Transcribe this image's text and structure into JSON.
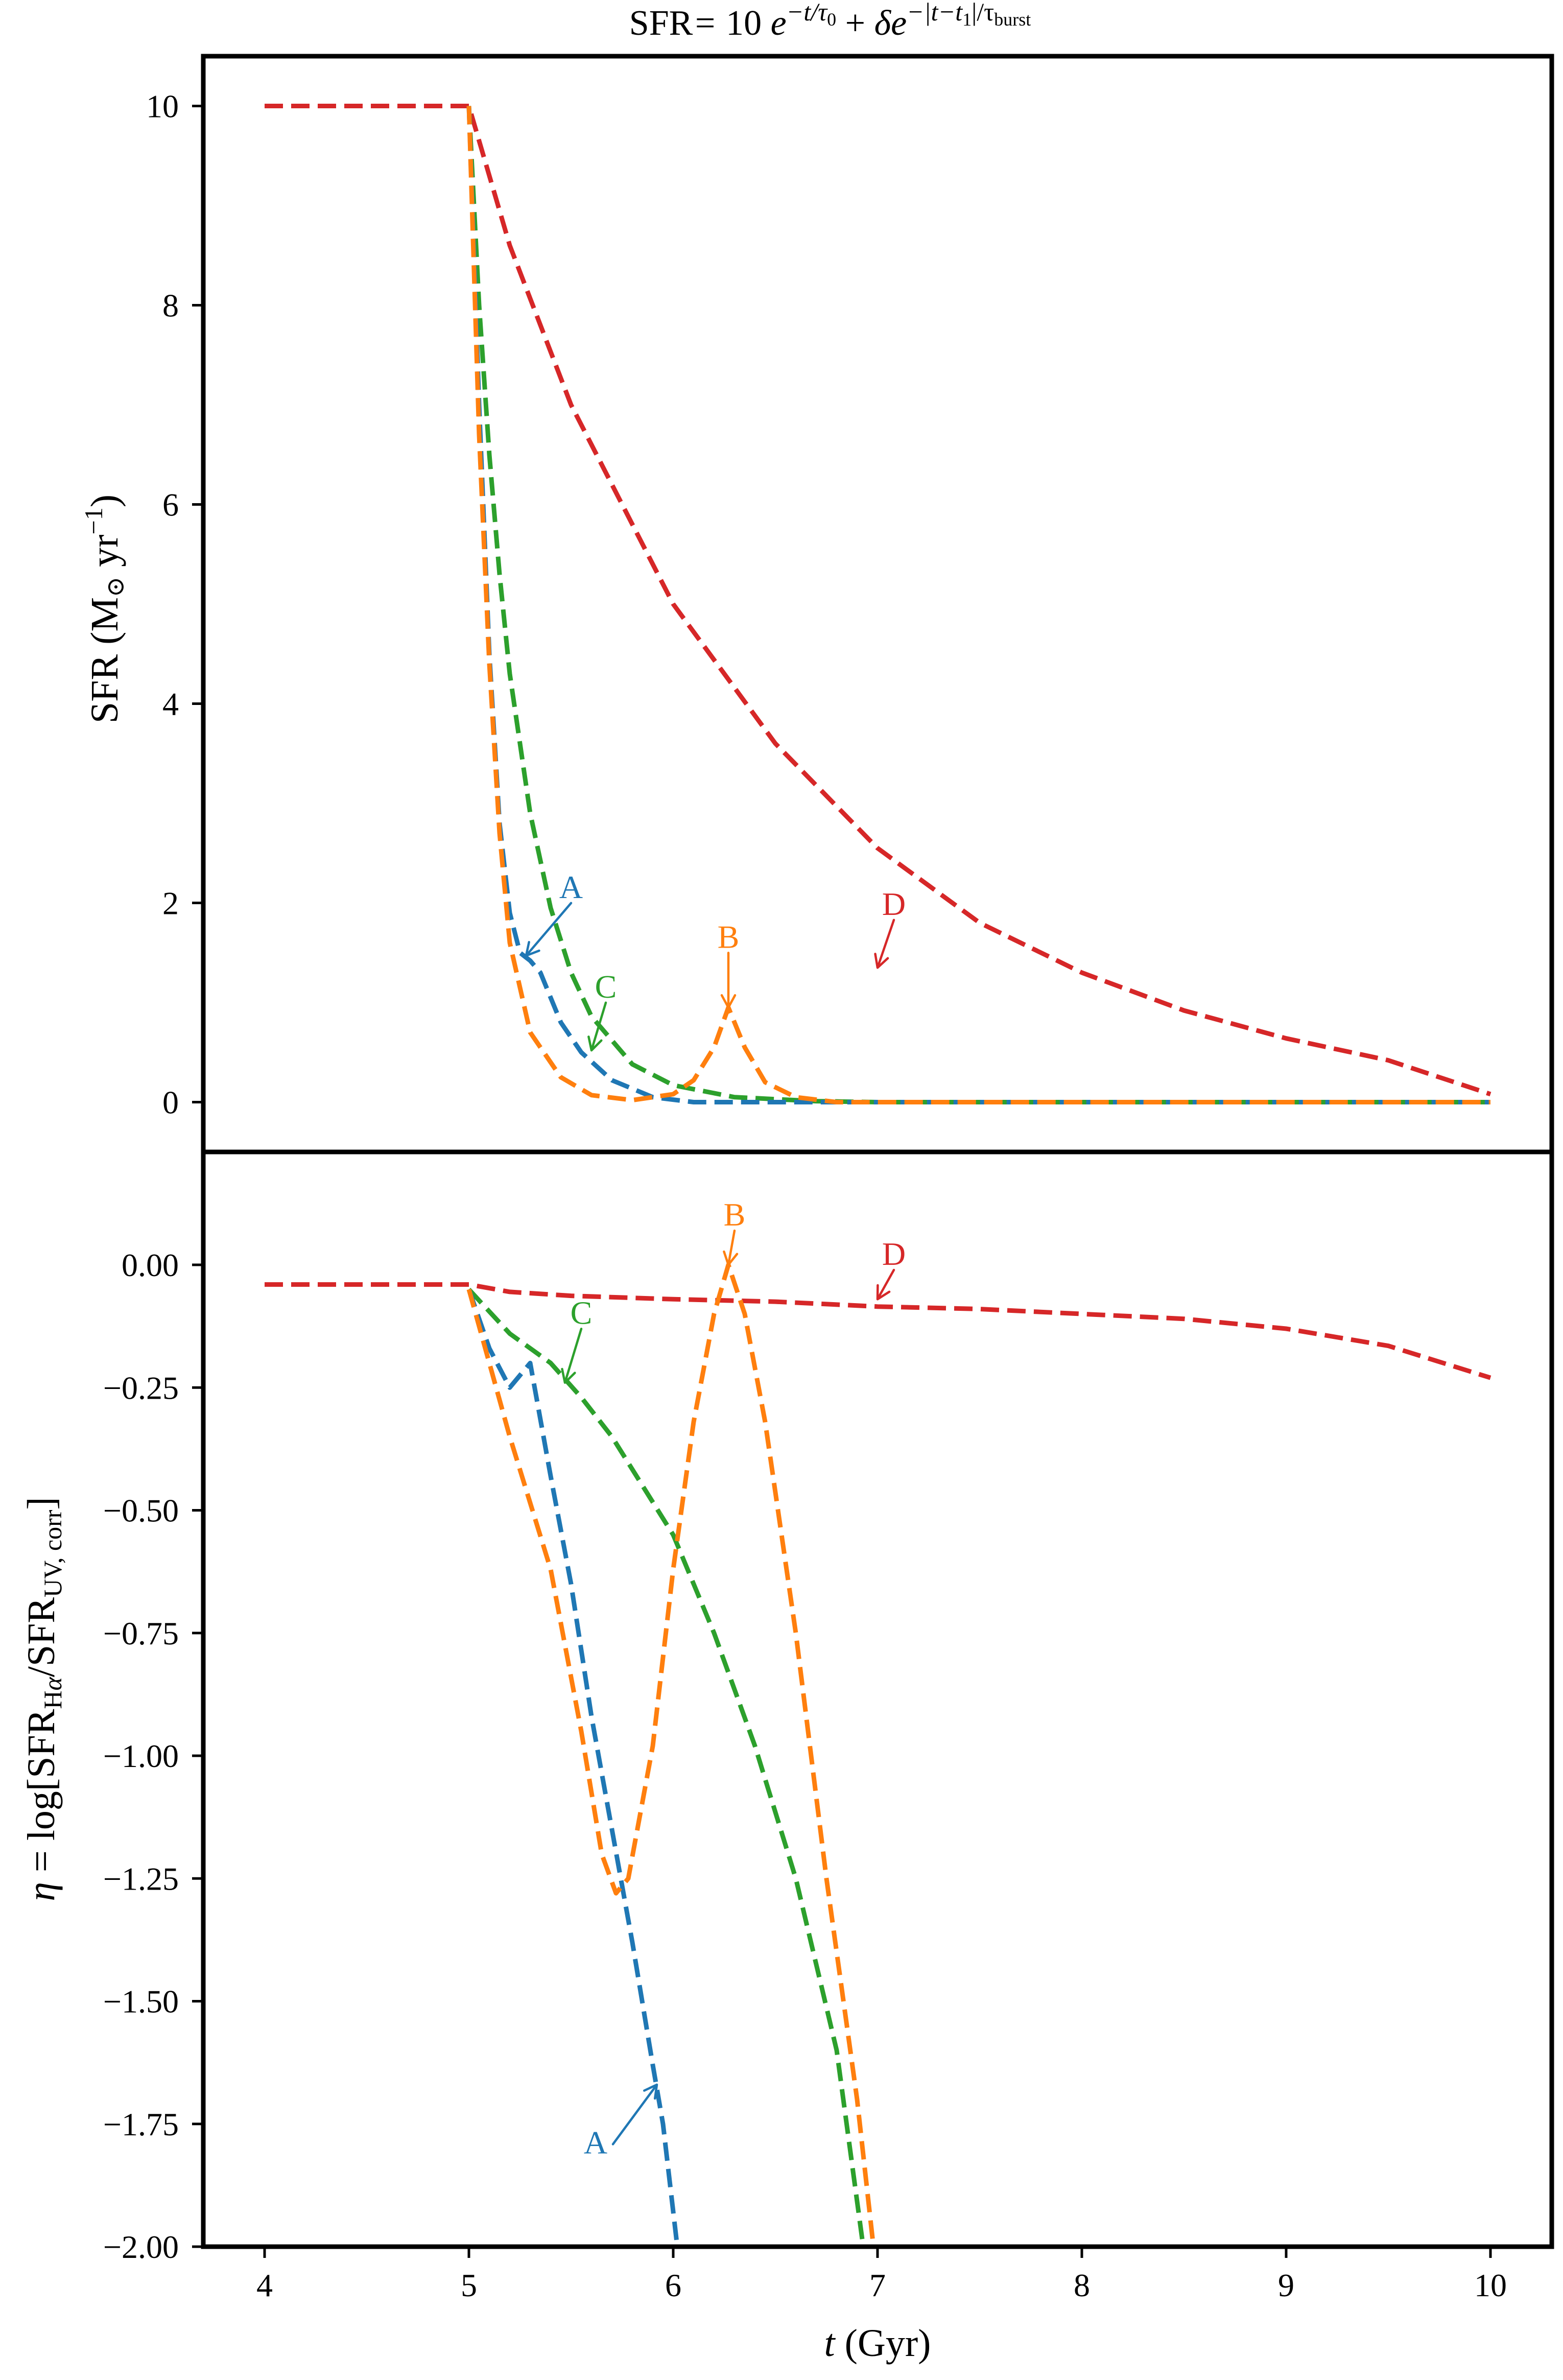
{
  "chart_data": {
    "figure_title": "SFR= 10 e^{-t/τ0} + δ e^{-|t-t1|/τburst}",
    "x": {
      "label": "t (Gyr)",
      "range": [
        3.7,
        10.3
      ],
      "ticks": [
        4,
        5,
        6,
        7,
        8,
        9,
        10
      ]
    },
    "colors": {
      "A": "#1f77b4",
      "B": "#ff7f0e",
      "C": "#2ca02c",
      "D": "#d62728"
    },
    "panels": [
      {
        "id": "top",
        "type": "line",
        "ylabel": "SFR (M⊙ yr−1)",
        "ylim": [
          -0.5,
          10.5
        ],
        "yticks": [
          {
            "v": 0,
            "label": "0"
          },
          {
            "v": 2,
            "label": "2"
          },
          {
            "v": 4,
            "label": "4"
          },
          {
            "v": 6,
            "label": "6"
          },
          {
            "v": 8,
            "label": "8"
          },
          {
            "v": 10,
            "label": "10"
          }
        ],
        "series": [
          {
            "name": "D",
            "points": [
              [
                4,
                10
              ],
              [
                5,
                10
              ],
              [
                5.2,
                8.6
              ],
              [
                5.5,
                7.0
              ],
              [
                6,
                5.0
              ],
              [
                6.5,
                3.6
              ],
              [
                7,
                2.55
              ],
              [
                7.5,
                1.8
              ],
              [
                8,
                1.3
              ],
              [
                8.5,
                0.92
              ],
              [
                9,
                0.64
              ],
              [
                9.5,
                0.42
              ],
              [
                10,
                0.08
              ]
            ]
          },
          {
            "name": "C",
            "points": [
              [
                5,
                10
              ],
              [
                5.05,
                8.0
              ],
              [
                5.1,
                6.5
              ],
              [
                5.15,
                5.3
              ],
              [
                5.2,
                4.3
              ],
              [
                5.3,
                2.9
              ],
              [
                5.4,
                1.95
              ],
              [
                5.5,
                1.3
              ],
              [
                5.6,
                0.86
              ],
              [
                5.8,
                0.38
              ],
              [
                6.0,
                0.17
              ],
              [
                6.3,
                0.05
              ],
              [
                6.7,
                0.01
              ],
              [
                7,
                0
              ],
              [
                10,
                0
              ]
            ]
          },
          {
            "name": "A",
            "points": [
              [
                5,
                10
              ],
              [
                5.05,
                7.0
              ],
              [
                5.1,
                4.5
              ],
              [
                5.15,
                2.8
              ],
              [
                5.2,
                1.9
              ],
              [
                5.25,
                1.5
              ],
              [
                5.3,
                1.42
              ],
              [
                5.35,
                1.3
              ],
              [
                5.45,
                0.8
              ],
              [
                5.55,
                0.5
              ],
              [
                5.7,
                0.22
              ],
              [
                5.9,
                0.05
              ],
              [
                6.1,
                0
              ],
              [
                10,
                0
              ]
            ]
          },
          {
            "name": "B",
            "points": [
              [
                5,
                10
              ],
              [
                5.05,
                6.7
              ],
              [
                5.1,
                4.4
              ],
              [
                5.15,
                2.7
              ],
              [
                5.2,
                1.6
              ],
              [
                5.3,
                0.7
              ],
              [
                5.45,
                0.25
              ],
              [
                5.6,
                0.07
              ],
              [
                5.8,
                0.02
              ],
              [
                6.0,
                0.08
              ],
              [
                6.1,
                0.22
              ],
              [
                6.2,
                0.55
              ],
              [
                6.27,
                0.95
              ],
              [
                6.35,
                0.55
              ],
              [
                6.45,
                0.2
              ],
              [
                6.6,
                0.05
              ],
              [
                6.8,
                0
              ],
              [
                10,
                0
              ]
            ]
          }
        ],
        "annotations": [
          {
            "series": "A",
            "text": "A",
            "xy": [
              5.28,
              1.47
            ],
            "xytext": [
              5.5,
              2.05
            ]
          },
          {
            "series": "B",
            "text": "B",
            "xy": [
              6.27,
              0.95
            ],
            "xytext": [
              6.27,
              1.55
            ]
          },
          {
            "series": "C",
            "text": "C",
            "xy": [
              5.6,
              0.52
            ],
            "xytext": [
              5.67,
              1.05
            ]
          },
          {
            "series": "D",
            "text": "D",
            "xy": [
              7.0,
              1.35
            ],
            "xytext": [
              7.08,
              1.88
            ]
          }
        ]
      },
      {
        "id": "bottom",
        "type": "line",
        "ylabel": "η = log[SFRHα/SFRUV, corr]",
        "ylim": [
          -2.0,
          0.23
        ],
        "yticks": [
          {
            "v": 0.0,
            "label": "0.00"
          },
          {
            "v": -0.25,
            "label": "−0.25"
          },
          {
            "v": -0.5,
            "label": "−0.50"
          },
          {
            "v": -0.75,
            "label": "−0.75"
          },
          {
            "v": -1.0,
            "label": "−1.00"
          },
          {
            "v": -1.25,
            "label": "−1.25"
          },
          {
            "v": -1.5,
            "label": "−1.50"
          },
          {
            "v": -1.75,
            "label": "−1.75"
          },
          {
            "v": -2.0,
            "label": "−2.00"
          }
        ],
        "series": [
          {
            "name": "D",
            "points": [
              [
                4,
                -0.04
              ],
              [
                5,
                -0.04
              ],
              [
                5.2,
                -0.055
              ],
              [
                5.5,
                -0.063
              ],
              [
                6,
                -0.07
              ],
              [
                6.5,
                -0.075
              ],
              [
                7,
                -0.085
              ],
              [
                7.5,
                -0.09
              ],
              [
                8,
                -0.1
              ],
              [
                8.5,
                -0.11
              ],
              [
                9,
                -0.13
              ],
              [
                9.5,
                -0.165
              ],
              [
                10,
                -0.23
              ]
            ]
          },
          {
            "name": "C",
            "points": [
              [
                5,
                -0.05
              ],
              [
                5.2,
                -0.14
              ],
              [
                5.4,
                -0.2
              ],
              [
                5.55,
                -0.27
              ],
              [
                5.7,
                -0.35
              ],
              [
                5.85,
                -0.45
              ],
              [
                6.0,
                -0.55
              ],
              [
                6.2,
                -0.75
              ],
              [
                6.4,
                -0.98
              ],
              [
                6.6,
                -1.25
              ],
              [
                6.8,
                -1.6
              ],
              [
                6.93,
                -2.0
              ]
            ]
          },
          {
            "name": "A",
            "points": [
              [
                5,
                -0.05
              ],
              [
                5.1,
                -0.17
              ],
              [
                5.2,
                -0.25
              ],
              [
                5.3,
                -0.2
              ],
              [
                5.4,
                -0.43
              ],
              [
                5.5,
                -0.65
              ],
              [
                5.6,
                -0.92
              ],
              [
                5.7,
                -1.15
              ],
              [
                5.8,
                -1.38
              ],
              [
                5.9,
                -1.63
              ],
              [
                5.95,
                -1.75
              ],
              [
                6.02,
                -2.0
              ]
            ]
          },
          {
            "name": "B",
            "points": [
              [
                5,
                -0.05
              ],
              [
                5.2,
                -0.35
              ],
              [
                5.4,
                -0.62
              ],
              [
                5.55,
                -0.95
              ],
              [
                5.65,
                -1.2
              ],
              [
                5.72,
                -1.28
              ],
              [
                5.78,
                -1.25
              ],
              [
                5.9,
                -0.98
              ],
              [
                6.0,
                -0.62
              ],
              [
                6.1,
                -0.32
              ],
              [
                6.2,
                -0.1
              ],
              [
                6.27,
                0.0
              ],
              [
                6.35,
                -0.1
              ],
              [
                6.45,
                -0.32
              ],
              [
                6.6,
                -0.75
              ],
              [
                6.75,
                -1.25
              ],
              [
                6.9,
                -1.7
              ],
              [
                6.98,
                -2.0
              ]
            ]
          }
        ],
        "annotations": [
          {
            "series": "A",
            "text": "A",
            "xy": [
              5.92,
              -1.67
            ],
            "xytext": [
              5.62,
              -1.81
            ]
          },
          {
            "series": "B",
            "text": "B",
            "xy": [
              6.27,
              0.0
            ],
            "xytext": [
              6.3,
              0.08
            ]
          },
          {
            "series": "C",
            "text": "C",
            "xy": [
              5.47,
              -0.24
            ],
            "xytext": [
              5.55,
              -0.12
            ]
          },
          {
            "series": "D",
            "text": "D",
            "xy": [
              7.0,
              -0.07
            ],
            "xytext": [
              7.08,
              -0.0
            ]
          }
        ]
      }
    ]
  }
}
